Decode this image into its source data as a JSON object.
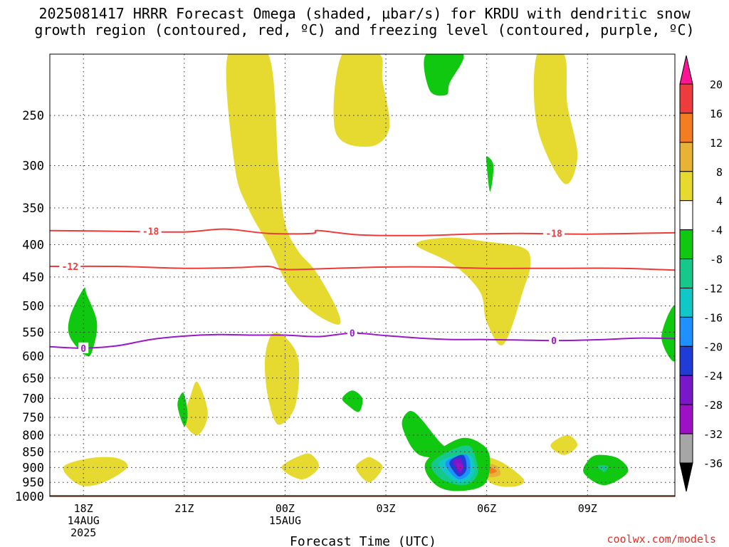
{
  "title_line1": "2025081417 HRRR Forecast Omega (shaded, µbar/s) for KRDU with dendritic snow",
  "title_line2": "growth region (contoured, red, ºC) and freezing level (contoured, purple, ºC)",
  "credit": "coolwx.com/models",
  "chart_data": {
    "type": "time-height contour",
    "title": "2025081417 HRRR Forecast Omega (shaded, µbar/s) for KRDU with dendritic snow growth region (contoured, red, ºC) and freezing level (contoured, purple, ºC)",
    "xlabel": "Forecast Time (UTC)",
    "ylabel": "",
    "x_ticks": [
      {
        "hour": 18,
        "label": "18Z",
        "sub1": "14AUG",
        "sub2": "2025"
      },
      {
        "hour": 21,
        "label": "21Z",
        "sub1": "",
        "sub2": ""
      },
      {
        "hour": 24,
        "label": "00Z",
        "sub1": "15AUG",
        "sub2": ""
      },
      {
        "hour": 27,
        "label": "03Z",
        "sub1": "",
        "sub2": ""
      },
      {
        "hour": 30,
        "label": "06Z",
        "sub1": "",
        "sub2": ""
      },
      {
        "hour": 33,
        "label": "09Z",
        "sub1": "",
        "sub2": ""
      }
    ],
    "xlim": [
      17,
      35.6
    ],
    "ylim_hpa": [
      1000,
      200
    ],
    "y_scale": "log",
    "y_ticks": [
      250,
      300,
      350,
      400,
      450,
      500,
      550,
      600,
      650,
      700,
      750,
      800,
      850,
      900,
      950,
      1000
    ],
    "grid": true,
    "colorbar": {
      "colors": [
        "#ff1493",
        "#ee3b3b",
        "#f37d20",
        "#e8b237",
        "#e6d92f",
        "#ffffff",
        "#10c810",
        "#16c98a",
        "#10c8c8",
        "#1e90ff",
        "#1f3cd6",
        "#7a17c9",
        "#a00fc8",
        "#a6a6a6",
        "#000000"
      ],
      "labels": [
        "20",
        "16",
        "12",
        "8",
        "4",
        "-4",
        "-8",
        "-12",
        "-16",
        "-20",
        "-24",
        "-28",
        "-32",
        "-36"
      ]
    },
    "contours": [
      {
        "label": "-18",
        "color": "#ee3b3b",
        "points": [
          [
            17,
            380
          ],
          [
            19,
            381
          ],
          [
            21,
            382
          ],
          [
            22.2,
            378
          ],
          [
            23.5,
            384
          ],
          [
            24.8,
            384
          ],
          [
            25,
            380
          ],
          [
            26.2,
            386
          ],
          [
            28,
            387
          ],
          [
            29.5,
            385
          ],
          [
            31,
            384
          ],
          [
            33,
            385
          ],
          [
            35.6,
            383
          ]
        ],
        "label_at": [
          [
            20,
            381
          ],
          [
            32,
            384
          ]
        ]
      },
      {
        "label": "-12",
        "color": "#ee3b3b",
        "points": [
          [
            17,
            433
          ],
          [
            19,
            433
          ],
          [
            21,
            436
          ],
          [
            22.5,
            435
          ],
          [
            23.5,
            433
          ],
          [
            24,
            438
          ],
          [
            25.5,
            436
          ],
          [
            27,
            434
          ],
          [
            28.5,
            434
          ],
          [
            30,
            436
          ],
          [
            32,
            436
          ],
          [
            34,
            436
          ],
          [
            35.6,
            439
          ]
        ],
        "label_at": [
          [
            17.6,
            433
          ]
        ]
      },
      {
        "label": "0",
        "color": "#9a18c8",
        "points": [
          [
            17,
            580
          ],
          [
            18,
            583
          ],
          [
            19,
            578
          ],
          [
            20,
            565
          ],
          [
            21,
            558
          ],
          [
            22,
            555
          ],
          [
            23,
            556
          ],
          [
            24,
            556
          ],
          [
            25,
            559
          ],
          [
            26,
            552
          ],
          [
            27,
            557
          ],
          [
            28,
            562
          ],
          [
            29,
            565
          ],
          [
            30,
            565
          ],
          [
            32,
            567
          ],
          [
            33.5,
            565
          ],
          [
            34.5,
            562
          ],
          [
            35.6,
            563
          ]
        ],
        "label_at": [
          [
            18,
            583
          ],
          [
            26,
            552
          ],
          [
            32,
            567
          ]
        ]
      }
    ],
    "omega_regions": [
      {
        "value": 4,
        "points": [
          [
            22.3,
            200
          ],
          [
            22.5,
            300
          ],
          [
            22.9,
            350
          ],
          [
            23.5,
            400
          ],
          [
            24.1,
            465
          ],
          [
            24.8,
            510
          ],
          [
            25.6,
            535
          ],
          [
            25.5,
            500
          ],
          [
            24.9,
            440
          ],
          [
            24.4,
            410
          ],
          [
            24.0,
            370
          ],
          [
            23.8,
            300
          ],
          [
            23.5,
            200
          ]
        ]
      },
      {
        "value": 4,
        "points": [
          [
            25.7,
            200
          ],
          [
            25.5,
            265
          ],
          [
            26.5,
            280
          ],
          [
            27.1,
            262
          ],
          [
            26.9,
            220
          ],
          [
            26.8,
            200
          ]
        ]
      },
      {
        "value": 4,
        "points": [
          [
            31.5,
            200
          ],
          [
            31.5,
            260
          ],
          [
            32.3,
            320
          ],
          [
            32.7,
            290
          ],
          [
            32.4,
            240
          ],
          [
            32.3,
            200
          ]
        ]
      },
      {
        "value": 4,
        "points": [
          [
            27.9,
            400
          ],
          [
            29.0,
            430
          ],
          [
            29.8,
            475
          ],
          [
            30.0,
            530
          ],
          [
            30.5,
            575
          ],
          [
            31.1,
            470
          ],
          [
            31.3,
            430
          ],
          [
            31.1,
            405
          ],
          [
            29.9,
            395
          ],
          [
            28.8,
            390
          ]
        ]
      },
      {
        "value": 4,
        "points": [
          [
            21.2,
            690
          ],
          [
            21.0,
            760
          ],
          [
            21.4,
            800
          ],
          [
            21.7,
            740
          ],
          [
            21.4,
            660
          ]
        ]
      },
      {
        "value": 4,
        "points": [
          [
            23.6,
            555
          ],
          [
            23.4,
            610
          ],
          [
            23.5,
            700
          ],
          [
            23.8,
            770
          ],
          [
            24.3,
            720
          ],
          [
            24.4,
            610
          ],
          [
            24.0,
            560
          ]
        ]
      },
      {
        "value": 4,
        "points": [
          [
            18.2,
            870
          ],
          [
            17.4,
            900
          ],
          [
            17.9,
            960
          ],
          [
            18.6,
            950
          ],
          [
            19.3,
            900
          ],
          [
            19.0,
            870
          ]
        ]
      },
      {
        "value": 4,
        "points": [
          [
            24.5,
            860
          ],
          [
            23.9,
            900
          ],
          [
            24.5,
            940
          ],
          [
            25.0,
            900
          ],
          [
            24.8,
            860
          ]
        ]
      },
      {
        "value": 4,
        "points": [
          [
            26.4,
            870
          ],
          [
            26.1,
            900
          ],
          [
            26.5,
            950
          ],
          [
            26.9,
            900
          ],
          [
            26.6,
            870
          ]
        ]
      },
      {
        "value": 4,
        "points": [
          [
            31.9,
            830
          ],
          [
            32.3,
            860
          ],
          [
            32.7,
            830
          ],
          [
            32.4,
            800
          ]
        ]
      },
      {
        "value": 4,
        "points": [
          [
            29.8,
            870
          ],
          [
            30.1,
            950
          ],
          [
            30.8,
            965
          ],
          [
            31.1,
            940
          ],
          [
            30.4,
            880
          ]
        ]
      },
      {
        "value": 8,
        "points": [
          [
            30.0,
            890
          ],
          [
            30.0,
            930
          ],
          [
            30.4,
            925
          ],
          [
            30.3,
            895
          ]
        ]
      },
      {
        "value": 12,
        "points": [
          [
            30.1,
            900
          ],
          [
            30.1,
            920
          ],
          [
            30.3,
            912
          ]
        ]
      },
      {
        "value": -4,
        "points": [
          [
            28.2,
            200
          ],
          [
            28.3,
            228
          ],
          [
            28.8,
            232
          ],
          [
            28.9,
            222
          ],
          [
            29.3,
            200
          ]
        ]
      },
      {
        "value": -4,
        "points": [
          [
            18.0,
            470
          ],
          [
            17.6,
            520
          ],
          [
            17.6,
            560
          ],
          [
            18.1,
            600
          ],
          [
            18.3,
            580
          ],
          [
            18.4,
            530
          ],
          [
            18.1,
            480
          ]
        ]
      },
      {
        "value": -4,
        "points": [
          [
            20.9,
            690
          ],
          [
            20.8,
            720
          ],
          [
            21.0,
            775
          ],
          [
            21.1,
            740
          ],
          [
            21.0,
            690
          ]
        ]
      },
      {
        "value": -4,
        "points": [
          [
            25.7,
            700
          ],
          [
            25.9,
            720
          ],
          [
            26.2,
            735
          ],
          [
            26.3,
            700
          ],
          [
            26.0,
            680
          ]
        ]
      },
      {
        "value": -4,
        "points": [
          [
            27.6,
            740
          ],
          [
            27.5,
            780
          ],
          [
            28.0,
            860
          ],
          [
            29.0,
            860
          ],
          [
            28.6,
            820
          ],
          [
            27.9,
            740
          ]
        ]
      },
      {
        "value": -4,
        "points": [
          [
            35.6,
            500
          ],
          [
            35.2,
            560
          ],
          [
            35.6,
            610
          ]
        ]
      },
      {
        "value": -4,
        "points": [
          [
            30.0,
            300
          ],
          [
            30.1,
            330
          ],
          [
            30.2,
            300
          ],
          [
            30.0,
            290
          ]
        ]
      },
      {
        "value": -4,
        "points": [
          [
            28.2,
            880
          ],
          [
            28.4,
            950
          ],
          [
            29.0,
            980
          ],
          [
            29.9,
            960
          ],
          [
            30.1,
            880
          ],
          [
            29.9,
            830
          ],
          [
            29.2,
            810
          ]
        ]
      },
      {
        "value": -8,
        "points": [
          [
            28.4,
            880
          ],
          [
            28.6,
            935
          ],
          [
            29.3,
            960
          ],
          [
            29.7,
            930
          ],
          [
            29.7,
            880
          ],
          [
            29.4,
            830
          ]
        ]
      },
      {
        "value": -12,
        "points": [
          [
            28.6,
            880
          ],
          [
            28.8,
            925
          ],
          [
            29.2,
            950
          ],
          [
            29.6,
            925
          ],
          [
            29.5,
            860
          ]
        ]
      },
      {
        "value": -16,
        "points": [
          [
            28.8,
            880
          ],
          [
            28.9,
            915
          ],
          [
            29.2,
            940
          ],
          [
            29.5,
            915
          ],
          [
            29.4,
            860
          ]
        ]
      },
      {
        "value": -20,
        "points": [
          [
            28.9,
            880
          ],
          [
            29.0,
            910
          ],
          [
            29.2,
            930
          ],
          [
            29.4,
            905
          ],
          [
            29.3,
            860
          ]
        ]
      },
      {
        "value": -24,
        "points": [
          [
            29.0,
            880
          ],
          [
            29.1,
            905
          ],
          [
            29.2,
            920
          ],
          [
            29.3,
            900
          ],
          [
            29.2,
            870
          ]
        ]
      },
      {
        "value": -28,
        "points": [
          [
            29.1,
            885
          ],
          [
            29.2,
            912
          ],
          [
            29.3,
            895
          ]
        ]
      },
      {
        "value": -4,
        "points": [
          [
            33.0,
            880
          ],
          [
            32.9,
            920
          ],
          [
            33.5,
            960
          ],
          [
            34.2,
            915
          ],
          [
            33.9,
            870
          ],
          [
            33.3,
            860
          ]
        ]
      },
      {
        "value": -8,
        "points": [
          [
            33.3,
            895
          ],
          [
            33.5,
            915
          ],
          [
            33.6,
            895
          ]
        ]
      }
    ],
    "ground_hpa": 995
  }
}
